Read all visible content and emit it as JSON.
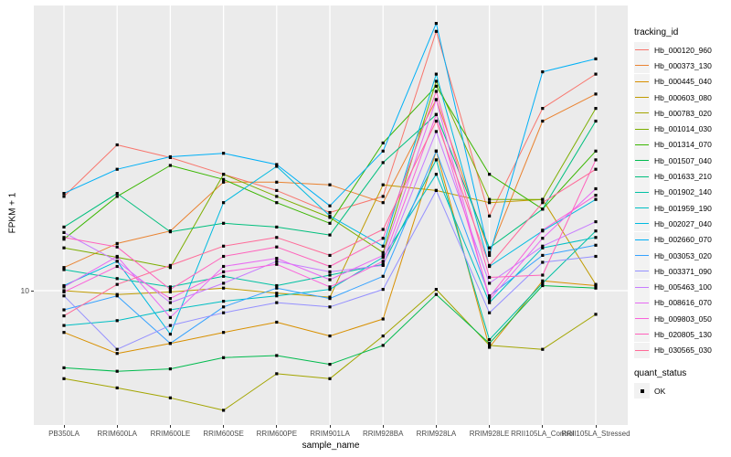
{
  "chart_data": {
    "type": "line",
    "title": "",
    "xlabel": "sample_name",
    "ylabel": "FPKM + 1",
    "y_scale": "log10",
    "ylim": [
      3.5,
      90
    ],
    "grid": "major",
    "panel_bg": "#EBEBEB",
    "grid_color": "#FFFFFF",
    "marker": "black-square",
    "marker_color": "#000000",
    "tick_label_color": "#4D4D4D",
    "legend_position": "right",
    "legend_title": "tracking_id",
    "legend2_title": "quant_status",
    "legend2_items": [
      "OK"
    ],
    "y_ticks": [
      {
        "label": "10",
        "value": 10
      }
    ],
    "categories": [
      "PB350LA",
      "RRIM600LA",
      "RRIM600LE",
      "RRIM600SE",
      "RRIM600PE",
      "RRIM901LA",
      "RRIM928BA",
      "RRIM928LA",
      "RRIM928LE",
      "RRII105LA_Control",
      "RRII105LA_Stressed"
    ],
    "series": [
      {
        "name": "Hb_000120_960",
        "color": "#F8766D",
        "values": [
          21,
          31.5,
          28.5,
          25,
          22,
          18.5,
          21,
          77,
          18,
          42,
          55
        ]
      },
      {
        "name": "Hb_000373_130",
        "color": "#EA8331",
        "values": [
          12,
          14.5,
          16,
          23.5,
          23.5,
          23,
          20,
          45,
          13.5,
          38,
          47
        ]
      },
      {
        "name": "Hb_000445_040",
        "color": "#D89000",
        "values": [
          7.2,
          6.1,
          6.6,
          7.2,
          7.8,
          7,
          8,
          30,
          6.4,
          10.8,
          10.4
        ]
      },
      {
        "name": "Hb_000603_080",
        "color": "#C09B00",
        "values": [
          10,
          9.7,
          9.9,
          10.2,
          9.8,
          9.5,
          23,
          22,
          20,
          20.5,
          10.5
        ]
      },
      {
        "name": "Hb_000783_020",
        "color": "#A3A500",
        "values": [
          5,
          4.65,
          4.3,
          3.9,
          5.2,
          5,
          7,
          10.1,
          6.5,
          6.3,
          8.3
        ]
      },
      {
        "name": "Hb_001014_030",
        "color": "#7CAE00",
        "values": [
          14,
          13,
          12,
          25,
          21,
          17.8,
          13.5,
          52,
          20.5,
          20.5,
          42
        ]
      },
      {
        "name": "Hb_001314_070",
        "color": "#39B600",
        "values": [
          15,
          21,
          26.8,
          24,
          20,
          17,
          32,
          50,
          25,
          19,
          30
        ]
      },
      {
        "name": "Hb_001507_040",
        "color": "#00BB4E",
        "values": [
          5.45,
          5.3,
          5.4,
          5.9,
          6,
          5.6,
          6.5,
          9.7,
          6.6,
          10.4,
          10.2
        ]
      },
      {
        "name": "Hb_001633_210",
        "color": "#00BF7D",
        "values": [
          16.5,
          21.5,
          15.9,
          17,
          16.5,
          15.5,
          27.4,
          40,
          14,
          19,
          38
        ]
      },
      {
        "name": "Hb_001902_140",
        "color": "#00C1A3",
        "values": [
          11.8,
          11,
          10.3,
          11.2,
          10.4,
          11.3,
          12.3,
          28,
          6.8,
          10.6,
          16
        ]
      },
      {
        "name": "Hb_001959_190",
        "color": "#00BFC4",
        "values": [
          7.6,
          7.9,
          8.6,
          9.2,
          9.6,
          10.1,
          13,
          25,
          9.1,
          14,
          15.2
        ]
      },
      {
        "name": "Hb_002027_040",
        "color": "#00BAE0",
        "values": [
          10.4,
          12.6,
          7.1,
          20,
          26.6,
          18,
          14.2,
          55,
          12.1,
          16,
          20.5
        ]
      },
      {
        "name": "Hb_002660_070",
        "color": "#00B0F6",
        "values": [
          21.5,
          26,
          28.7,
          29.5,
          27,
          19.5,
          30,
          82,
          13.2,
          56,
          62
        ]
      },
      {
        "name": "Hb_003053_020",
        "color": "#35A2FF",
        "values": [
          8.6,
          9.6,
          6.6,
          8.8,
          10.2,
          9.4,
          11.2,
          30,
          9.6,
          13.2,
          14.3
        ]
      },
      {
        "name": "Hb_003371_090",
        "color": "#9590FF",
        "values": [
          9.6,
          6.3,
          7.6,
          8.4,
          9.1,
          8.8,
          10.1,
          22,
          8.4,
          12.5,
          13.1
        ]
      },
      {
        "name": "Hb_005463_100",
        "color": "#C77CFF",
        "values": [
          15.8,
          12.6,
          9.1,
          10.6,
          12.6,
          11.6,
          12.2,
          35,
          10.6,
          14.2,
          17.2
        ]
      },
      {
        "name": "Hb_008616_070",
        "color": "#E76BF3",
        "values": [
          10.3,
          13.1,
          8.1,
          12.1,
          12.9,
          10.9,
          13.2,
          45,
          9.3,
          15.1,
          22.3
        ]
      },
      {
        "name": "Hb_009803_050",
        "color": "#FA62DB",
        "values": [
          9.9,
          12.1,
          9.4,
          11.6,
          12.3,
          10.3,
          12.6,
          40,
          9.5,
          16.1,
          21.2
        ]
      },
      {
        "name": "Hb_020805_130",
        "color": "#FF62BC",
        "values": [
          15.2,
          14.1,
          10.1,
          13.1,
          14.1,
          12.1,
          15.1,
          48,
          11.1,
          11.3,
          28
        ]
      },
      {
        "name": "Hb_030565_030",
        "color": "#FF6A98",
        "values": [
          8.2,
          10.5,
          12.2,
          14.2,
          15.2,
          13.2,
          16.2,
          38,
          12.2,
          20,
          26
        ]
      }
    ]
  }
}
